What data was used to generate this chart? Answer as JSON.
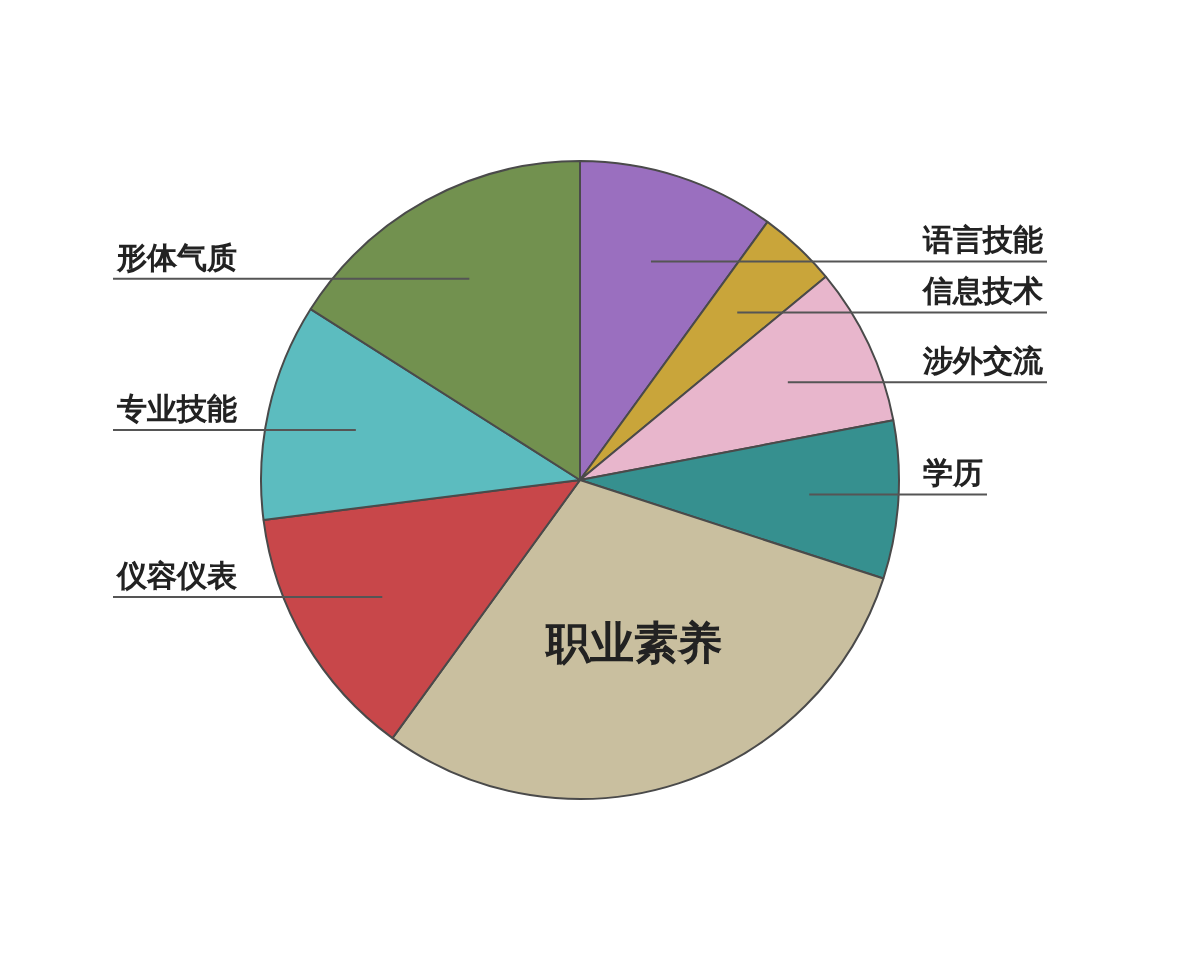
{
  "chart_data": {
    "type": "pie",
    "categories": [
      "语言技能",
      "信息技术",
      "涉外交流",
      "学历",
      "职业素养",
      "仪容仪表",
      "专业技能",
      "形体气质"
    ],
    "values": [
      10,
      4,
      8,
      8,
      30,
      13,
      11,
      16
    ],
    "colors": [
      "#9a6fbf",
      "#c9a53a",
      "#e8b6cc",
      "#36908f",
      "#c9bf9f",
      "#c8474a",
      "#5cbcbf",
      "#72914f"
    ]
  }
}
